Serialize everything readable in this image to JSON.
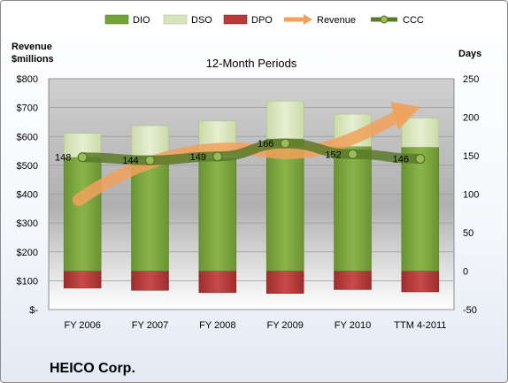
{
  "chart_data": {
    "type": "bar",
    "title": "12-Month Periods",
    "company": "HEICO Corp.",
    "left_axis": {
      "label_line1": "Revenue",
      "label_line2": "$millions",
      "ylim": [
        0,
        800
      ],
      "ticks": [
        "$-",
        "$100",
        "$200",
        "$300",
        "$400",
        "$500",
        "$600",
        "$700",
        "$800"
      ]
    },
    "right_axis": {
      "label": "Days",
      "ylim": [
        -50,
        250
      ],
      "ticks": [
        "-50",
        "0",
        "50",
        "100",
        "150",
        "200",
        "250"
      ]
    },
    "categories": [
      "FY 2006",
      "FY 2007",
      "FY 2008",
      "FY 2009",
      "FY 2010",
      "TTM 4-2011"
    ],
    "series": [
      {
        "name": "DIO",
        "color": "#76a03a",
        "values": [
          148,
          149,
          147,
          172,
          162,
          161
        ]
      },
      {
        "name": "DSO",
        "color": "#d7e4bd",
        "values": [
          31,
          40,
          48,
          49,
          42,
          38
        ]
      },
      {
        "name": "DPO",
        "color": "#b8393a",
        "values": [
          -22,
          -25,
          -28,
          -29,
          -24,
          -27
        ]
      },
      {
        "name": "Revenue",
        "color": "#f1a15a",
        "type": "trend-arrow"
      },
      {
        "name": "CCC",
        "color": "#5a7a2a",
        "type": "line",
        "values": [
          148,
          144,
          149,
          166,
          152,
          146
        ]
      }
    ],
    "ccc_labels": [
      "148",
      "144",
      "149",
      "166",
      "152",
      "146"
    ],
    "legend_position": "top"
  }
}
